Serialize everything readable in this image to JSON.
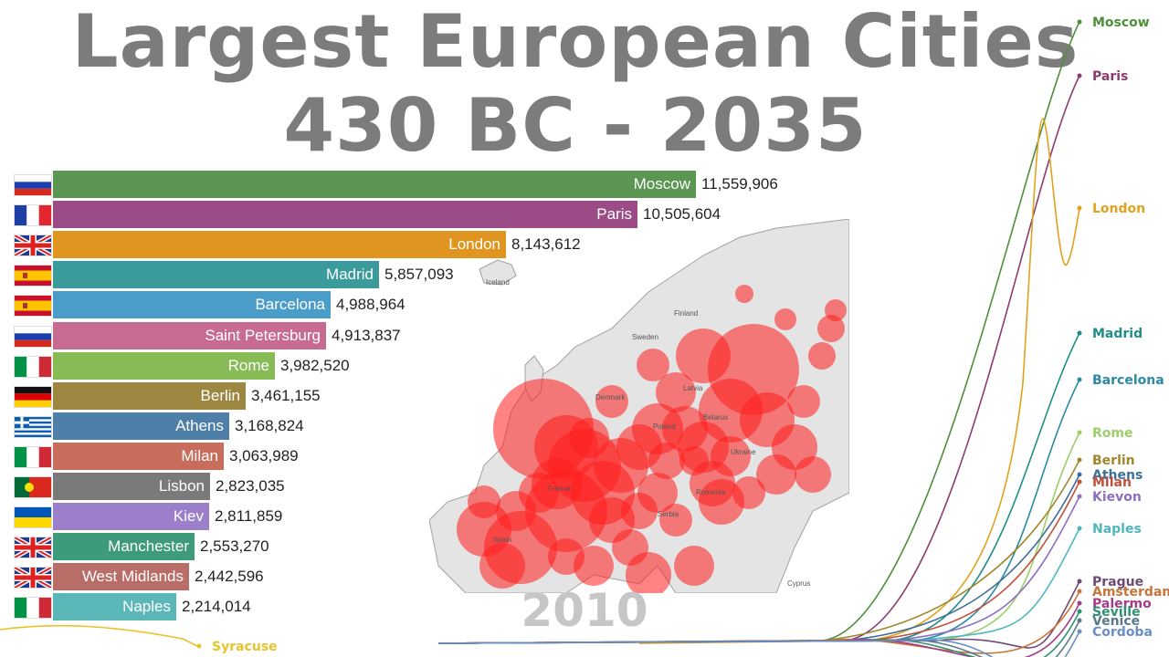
{
  "title": {
    "line1": "Largest European Cities",
    "line2": "430 BC - 2035"
  },
  "year": "2010",
  "map_labels": [
    "Iceland",
    "Finland",
    "Sweden",
    "Latvia",
    "Denmark",
    "Belarus",
    "Poland",
    "Ukraine",
    "France",
    "Romania",
    "Serbia",
    "Spain",
    "Cyprus"
  ],
  "chart_data": [
    {
      "type": "bar",
      "categories": [
        "Moscow",
        "Paris",
        "London",
        "Madrid",
        "Barcelona",
        "Saint Petersburg",
        "Rome",
        "Berlin",
        "Athens",
        "Milan",
        "Lisbon",
        "Kiev",
        "Manchester",
        "West Midlands",
        "Naples"
      ],
      "values": [
        11559906,
        10505604,
        8143612,
        5857093,
        4988964,
        4913837,
        3982520,
        3461155,
        3168824,
        3063989,
        2823035,
        2811859,
        2553270,
        2442596,
        2214014
      ],
      "value_labels": [
        "11,559,906",
        "10,505,604",
        "8,143,612",
        "5,857,093",
        "4,988,964",
        "4,913,837",
        "3,982,520",
        "3,461,155",
        "3,168,824",
        "3,063,989",
        "2,823,035",
        "2,811,859",
        "2,553,270",
        "2,442,596",
        "2,214,014"
      ],
      "colors": [
        "#5b9652",
        "#9b4c86",
        "#e09521",
        "#3a9b9a",
        "#4a9cc9",
        "#c76b92",
        "#86bb56",
        "#9c8640",
        "#4d7fa8",
        "#c86d5c",
        "#7a7a7a",
        "#9b7fca",
        "#3d9a7b",
        "#b96d67",
        "#5bb6b8"
      ],
      "flags": [
        "russia",
        "france",
        "uk",
        "spain",
        "spain",
        "russia",
        "italy",
        "germany",
        "greece",
        "italy",
        "portugal",
        "ukraine",
        "uk",
        "uk",
        "italy"
      ]
    },
    {
      "type": "line",
      "x_range": [
        "430 BC",
        "2035"
      ],
      "series": [
        {
          "name": "Moscow",
          "color": "#4e8f3a",
          "end_value": 11559906
        },
        {
          "name": "Paris",
          "color": "#8c3b6e",
          "end_value": 10505604
        },
        {
          "name": "London",
          "color": "#e0a21e",
          "end_value": 8143612
        },
        {
          "name": "Madrid",
          "color": "#1f8e88",
          "end_value": 5857093
        },
        {
          "name": "Barcelona",
          "color": "#2a8aa6",
          "end_value": 4988964
        },
        {
          "name": "Rome",
          "color": "#9ccf6a",
          "end_value": 3982520
        },
        {
          "name": "Berlin",
          "color": "#a0862a",
          "end_value": 3461155
        },
        {
          "name": "Athens",
          "color": "#3e6f9a",
          "end_value": 3168824
        },
        {
          "name": "Milan",
          "color": "#c0503c",
          "end_value": 3063989
        },
        {
          "name": "Kievon",
          "color": "#8a6fc4",
          "end_value": 2811859
        },
        {
          "name": "Naples",
          "color": "#4fb7c0",
          "end_value": 2214014
        },
        {
          "name": "Prague",
          "color": "#6d4b73",
          "end_value": null
        },
        {
          "name": "Amsterdam",
          "color": "#c8743a",
          "end_value": null
        },
        {
          "name": "Palermo",
          "color": "#a33c8c",
          "end_value": null
        },
        {
          "name": "Seville",
          "color": "#2f9270",
          "end_value": null
        },
        {
          "name": "Venice",
          "color": "#5a7a8c",
          "end_value": null
        },
        {
          "name": "Cordoba",
          "color": "#6d8ec7",
          "end_value": null
        },
        {
          "name": "Syracuse",
          "color": "#e8c32a",
          "end_value": null
        }
      ]
    }
  ]
}
